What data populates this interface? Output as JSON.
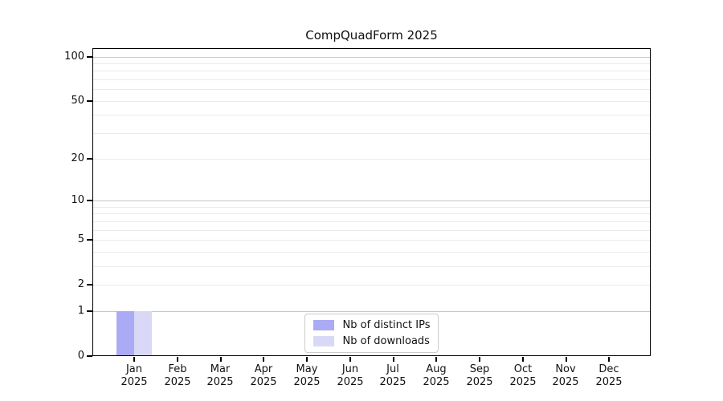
{
  "chart_data": {
    "type": "bar",
    "title": "CompQuadForm 2025",
    "categories": [
      "Jan 2025",
      "Feb 2025",
      "Mar 2025",
      "Apr 2025",
      "May 2025",
      "Jun 2025",
      "Jul 2025",
      "Aug 2025",
      "Sep 2025",
      "Oct 2025",
      "Nov 2025",
      "Dec 2025"
    ],
    "series": [
      {
        "name": "Nb of distinct IPs",
        "color": "#aaaaf5",
        "values": [
          1,
          0,
          0,
          0,
          0,
          0,
          0,
          0,
          0,
          0,
          0,
          0
        ]
      },
      {
        "name": "Nb of downloads",
        "color": "#d9d9f7",
        "values": [
          1,
          0,
          0,
          0,
          0,
          0,
          0,
          0,
          0,
          0,
          0,
          0
        ]
      }
    ],
    "xlabel": "",
    "ylabel": "",
    "yscale": "log1p",
    "yticks": [
      0,
      1,
      2,
      5,
      10,
      20,
      50,
      100
    ],
    "ylim": [
      0,
      113
    ],
    "grid": {
      "orientation": "horizontal",
      "major": [
        1,
        10,
        100
      ],
      "minor": [
        2,
        3,
        4,
        5,
        6,
        7,
        8,
        9,
        20,
        30,
        40,
        50,
        60,
        70,
        80,
        90
      ]
    },
    "legend_position": "bottom-center"
  },
  "colors": {
    "background": "#ffffff",
    "spine": "#000000",
    "major_grid": "#c8c8c8",
    "minor_grid": "#ebebeb",
    "legend_border": "#cccccc",
    "bar_distinct_ips": "#aaaaf5",
    "bar_downloads": "#d9d9f7"
  }
}
